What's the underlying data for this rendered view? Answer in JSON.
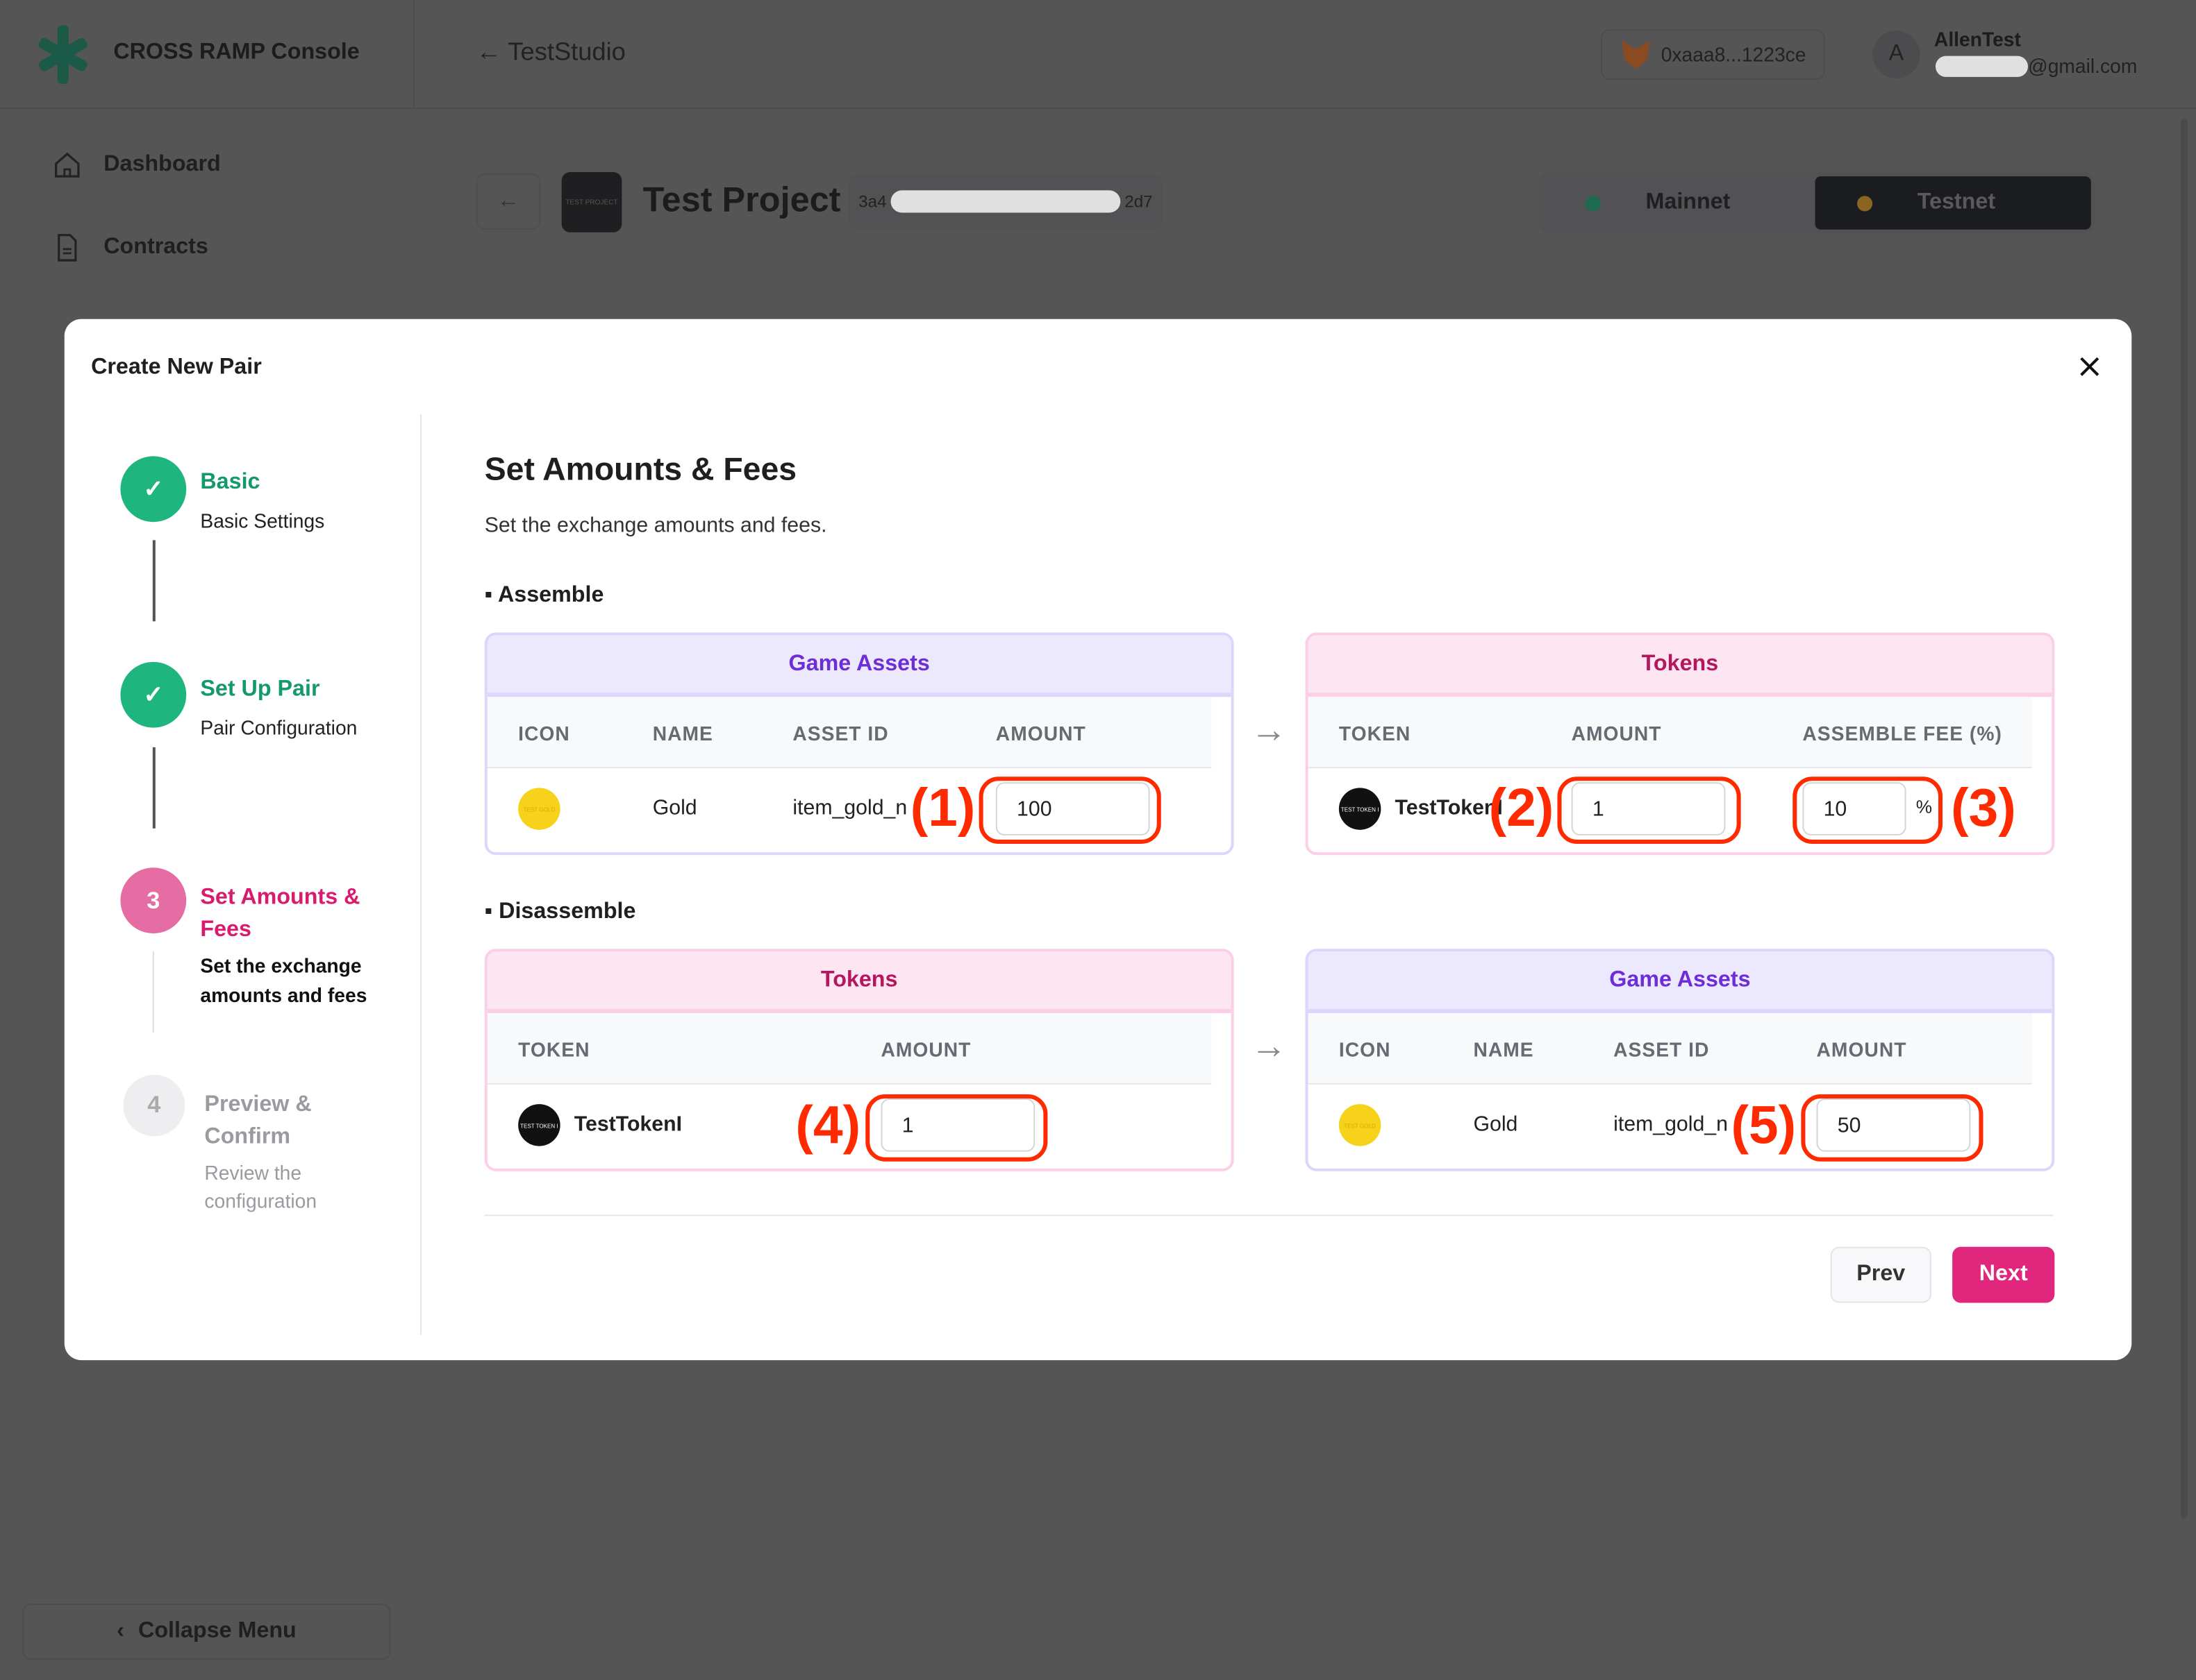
{
  "app": {
    "brand": "CROSS RAMP Console",
    "studio_link": "← TestStudio",
    "wallet": "0xaaa8...1223ce",
    "avatar_letter": "A",
    "user_name": "AllenTest",
    "email_suffix": "@gmail.com"
  },
  "sidebar": {
    "items": [
      {
        "label": "Dashboard",
        "icon": "home-icon"
      },
      {
        "label": "Contracts",
        "icon": "document-icon"
      }
    ],
    "collapse_label": "Collapse Menu"
  },
  "project": {
    "thumb_text": "TEST PROJECT",
    "title": "Test Project",
    "id_prefix": "3a4",
    "id_suffix": "2d7",
    "networks": [
      {
        "label": "Mainnet",
        "color": "#1c6b50",
        "selected": false
      },
      {
        "label": "Testnet",
        "color": "#8a6420",
        "selected": true
      }
    ]
  },
  "modal": {
    "title": "Create New Pair",
    "steps": [
      {
        "num": "1",
        "title": "Basic",
        "subtitle": "Basic Settings",
        "state": "done"
      },
      {
        "num": "2",
        "title": "Set Up Pair",
        "subtitle": "Pair Configuration",
        "state": "done"
      },
      {
        "num": "3",
        "title": "Set Amounts & Fees",
        "subtitle": "Set the exchange amounts and fees",
        "state": "active"
      },
      {
        "num": "4",
        "title": "Preview & Confirm",
        "subtitle": "Review the configuration",
        "state": "pending"
      }
    ],
    "heading": "Set Amounts & Fees",
    "description": "Set the exchange amounts and fees.",
    "assemble": {
      "label": "▪ Assemble",
      "left": {
        "title": "Game Assets",
        "columns": [
          "ICON",
          "NAME",
          "ASSET ID",
          "AMOUNT"
        ],
        "row": {
          "icon_text": "TEST GOLD",
          "name": "Gold",
          "asset_id": "item_gold_n",
          "amount": "100"
        }
      },
      "right": {
        "title": "Tokens",
        "columns": [
          "TOKEN",
          "AMOUNT",
          "ASSEMBLE FEE (%)"
        ],
        "row": {
          "icon_text": "TEST TOKEN I",
          "name": "TestTokenI",
          "amount": "1",
          "fee": "10",
          "fee_unit": "%"
        }
      }
    },
    "disassemble": {
      "label": "▪ Disassemble",
      "left": {
        "title": "Tokens",
        "columns": [
          "TOKEN",
          "AMOUNT"
        ],
        "row": {
          "icon_text": "TEST TOKEN I",
          "name": "TestTokenI",
          "amount": "1"
        }
      },
      "right": {
        "title": "Game Assets",
        "columns": [
          "ICON",
          "NAME",
          "ASSET ID",
          "AMOUNT"
        ],
        "row": {
          "icon_text": "TEST GOLD",
          "name": "Gold",
          "asset_id": "item_gold_n",
          "amount": "50"
        }
      }
    },
    "annotations": [
      "(1)",
      "(2)",
      "(3)",
      "(4)",
      "(5)"
    ],
    "prev_label": "Prev",
    "next_label": "Next"
  },
  "colors": {
    "accent": "#e0267d",
    "success": "#1fb57f",
    "overlay": "#555556",
    "annotation": "#ff2a00"
  }
}
